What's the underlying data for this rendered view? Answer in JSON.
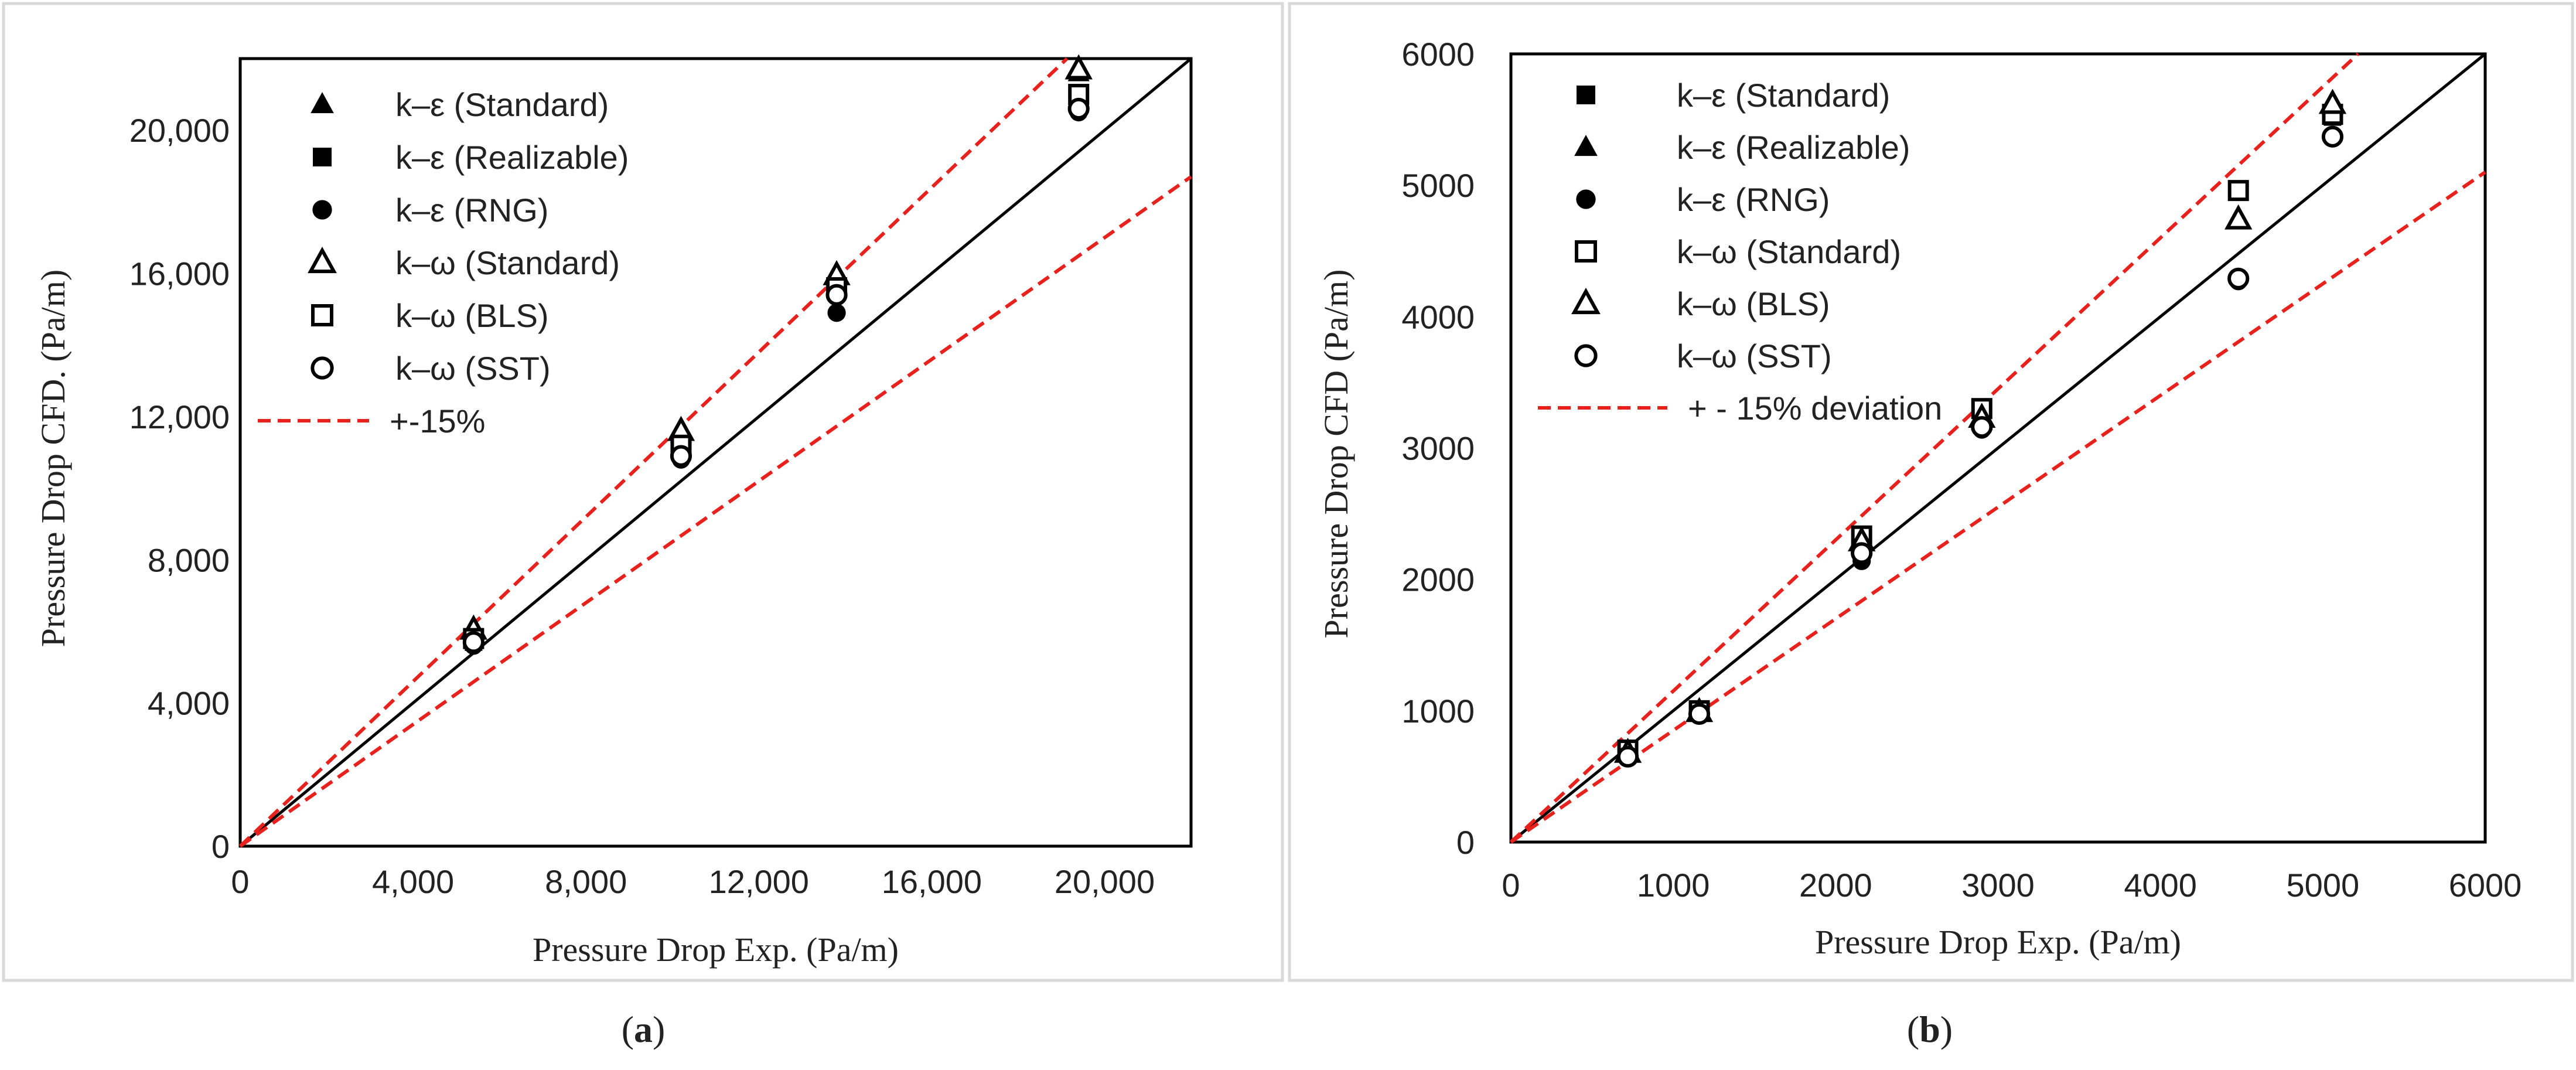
{
  "panels": [
    {
      "caption": "(a)",
      "caption_letter": "a",
      "chart_data": {
        "type": "scatter",
        "title": "",
        "xlabel": "Pressure Drop Exp.  (Pa/m)",
        "ylabel": "Pressure Drop CFD.  (Pa/m)",
        "xlim": [
          0,
          22000
        ],
        "ylim": [
          0,
          22000
        ],
        "xticks": [
          0,
          4000,
          8000,
          12000,
          16000,
          20000
        ],
        "yticks": [
          0,
          4000,
          8000,
          12000,
          16000,
          20000
        ],
        "xtick_labels": [
          "0",
          "4,000",
          "8,000",
          "12,000",
          "16,000",
          "20,000"
        ],
        "ytick_labels": [
          "0",
          "4,000",
          "8,000",
          "12,000",
          "16,000",
          "20,000"
        ],
        "grid": false,
        "legend_position": "top-left",
        "series": [
          {
            "name": "k–ε (Standard)",
            "marker": "triangle-filled",
            "x": [
              5400,
              10200,
              13800,
              19400
            ],
            "y": [
              6100,
              11500,
              16000,
              21600
            ]
          },
          {
            "name": "k–ε (Realizable)",
            "marker": "square-filled",
            "x": [
              5400,
              10200,
              13800,
              19400
            ],
            "y": [
              5700,
              11000,
              15500,
              21000
            ]
          },
          {
            "name": "k–ε (RNG)",
            "marker": "circle-filled",
            "x": [
              5400,
              10200,
              13800,
              19400
            ],
            "y": [
              5600,
              10800,
              14900,
              20500
            ]
          },
          {
            "name": "k–ω (Standard)",
            "marker": "triangle-open",
            "x": [
              5400,
              10200,
              13800,
              19400
            ],
            "y": [
              6050,
              11600,
              15950,
              21700
            ]
          },
          {
            "name": "k–ω (BLS)",
            "marker": "square-open",
            "x": [
              5400,
              10200,
              13800,
              19400
            ],
            "y": [
              5800,
              11200,
              15600,
              21000
            ]
          },
          {
            "name": "k–ω (SST)",
            "marker": "circle-open",
            "x": [
              5400,
              10200,
              13800,
              19400
            ],
            "y": [
              5700,
              10900,
              15400,
              20600
            ]
          }
        ],
        "reference_line": {
          "name": "",
          "slope": 1.0
        },
        "deviation_lines": {
          "name": "+-15%",
          "slopes": [
            1.15,
            0.85
          ]
        }
      }
    },
    {
      "caption": "(b)",
      "caption_letter": "b",
      "chart_data": {
        "type": "scatter",
        "title": "",
        "xlabel": "Pressure Drop Exp.  (Pa/m)",
        "ylabel": "Pressure Drop CFD (Pa/m)",
        "xlim": [
          0,
          6000
        ],
        "ylim": [
          0,
          6000
        ],
        "xticks": [
          0,
          1000,
          2000,
          3000,
          4000,
          5000,
          6000
        ],
        "yticks": [
          0,
          1000,
          2000,
          3000,
          4000,
          5000,
          6000
        ],
        "xtick_labels": [
          "0",
          "1000",
          "2000",
          "3000",
          "4000",
          "5000",
          "6000"
        ],
        "ytick_labels": [
          "0",
          "1000",
          "2000",
          "3000",
          "4000",
          "5000",
          "6000"
        ],
        "grid": false,
        "legend_position": "top-left",
        "series": [
          {
            "name": "k–ε (Standard)",
            "marker": "square-filled",
            "x": [
              720,
              1160,
              2160,
              2900,
              4480,
              5060
            ],
            "y": [
              690,
              990,
              2340,
              3290,
              4960,
              5520
            ]
          },
          {
            "name": "k–ε (Realizable)",
            "marker": "triangle-filled",
            "x": [
              720,
              1160,
              2160,
              2900,
              4480,
              5060
            ],
            "y": [
              670,
              980,
              2270,
              3200,
              4730,
              5600
            ]
          },
          {
            "name": "k–ε (RNG)",
            "marker": "circle-filled",
            "x": [
              720,
              1160,
              2160,
              2900,
              4480,
              5060
            ],
            "y": [
              640,
              970,
              2140,
              3140,
              4270,
              5370
            ]
          },
          {
            "name": "k–ω (Standard)",
            "marker": "square-open",
            "x": [
              720,
              1160,
              2160,
              2900,
              4480,
              5060
            ],
            "y": [
              700,
              1000,
              2330,
              3300,
              4960,
              5540
            ]
          },
          {
            "name": "k–ω (BLS)",
            "marker": "triangle-open",
            "x": [
              720,
              1160,
              2160,
              2900,
              4480,
              5060
            ],
            "y": [
              680,
              990,
              2290,
              3230,
              4740,
              5620
            ]
          },
          {
            "name": "k–ω (SST)",
            "marker": "circle-open",
            "x": [
              720,
              1160,
              2160,
              2900,
              4480,
              5060
            ],
            "y": [
              650,
              975,
              2200,
              3160,
              4290,
              5370
            ]
          }
        ],
        "reference_line": {
          "name": "",
          "slope": 1.0
        },
        "deviation_lines": {
          "name": "+ - 15% deviation",
          "slopes": [
            1.15,
            0.85
          ]
        }
      }
    }
  ],
  "colors": {
    "deviation": "#e8211d",
    "ink": "#000000",
    "text": "#222222",
    "frame": "#d9d9d9"
  }
}
